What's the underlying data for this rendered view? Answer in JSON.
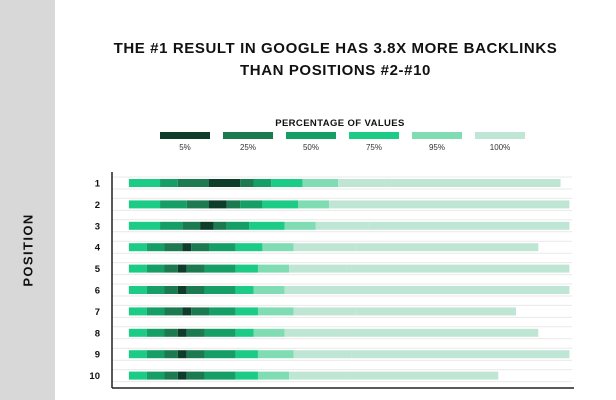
{
  "sidebar": {
    "label": "POSITION"
  },
  "chart_data": {
    "type": "bar",
    "title_lines": [
      "THE #1 RESULT IN GOOGLE HAS 3.8X MORE BACKLINKS",
      "THAN POSITIONS #2-#10"
    ],
    "ylabel": "POSITION",
    "legend_title": "PERCENTAGE OF VALUES",
    "legend": [
      {
        "label": "5%",
        "color": "#0f3d2b"
      },
      {
        "label": "25%",
        "color": "#1b7a4f"
      },
      {
        "label": "50%",
        "color": "#159e66"
      },
      {
        "label": "75%",
        "color": "#1ccb85"
      },
      {
        "label": "95%",
        "color": "#7fdcb3"
      },
      {
        "label": "100%",
        "color": "#bfe6d4"
      }
    ],
    "categories": [
      "1",
      "2",
      "3",
      "4",
      "5",
      "6",
      "7",
      "8",
      "9",
      "10"
    ],
    "x_scale": "log",
    "grid": true,
    "rows": [
      {
        "position": "1",
        "segments": [
          [
            0.02,
            0.09
          ],
          [
            0.09,
            0.13
          ],
          [
            0.13,
            0.2
          ],
          [
            0.2,
            0.27
          ],
          [
            0.27,
            0.3
          ],
          [
            0.3,
            0.34
          ],
          [
            0.34,
            0.41
          ],
          [
            0.41,
            0.49
          ],
          [
            0.49,
            0.61
          ],
          [
            0.61,
            0.99
          ]
        ]
      },
      {
        "position": "2",
        "segments": [
          [
            0.02,
            0.09
          ],
          [
            0.09,
            0.15
          ],
          [
            0.15,
            0.2
          ],
          [
            0.2,
            0.24
          ],
          [
            0.24,
            0.27
          ],
          [
            0.27,
            0.32
          ],
          [
            0.32,
            0.4
          ],
          [
            0.4,
            0.47
          ],
          [
            0.47,
            0.6
          ],
          [
            0.6,
            1.01
          ]
        ]
      },
      {
        "position": "3",
        "segments": [
          [
            0.02,
            0.09
          ],
          [
            0.09,
            0.14
          ],
          [
            0.14,
            0.18
          ],
          [
            0.18,
            0.21
          ],
          [
            0.21,
            0.24
          ],
          [
            0.24,
            0.29
          ],
          [
            0.29,
            0.37
          ],
          [
            0.37,
            0.44
          ],
          [
            0.44,
            0.56
          ],
          [
            0.56,
            1.01
          ]
        ]
      },
      {
        "position": "4",
        "segments": [
          [
            0.02,
            0.06
          ],
          [
            0.06,
            0.1
          ],
          [
            0.1,
            0.14
          ],
          [
            0.14,
            0.16
          ],
          [
            0.16,
            0.2
          ],
          [
            0.2,
            0.26
          ],
          [
            0.26,
            0.32
          ],
          [
            0.32,
            0.39
          ],
          [
            0.39,
            0.53
          ],
          [
            0.53,
            0.94
          ]
        ]
      },
      {
        "position": "5",
        "segments": [
          [
            0.02,
            0.06
          ],
          [
            0.06,
            0.1
          ],
          [
            0.1,
            0.13
          ],
          [
            0.13,
            0.15
          ],
          [
            0.15,
            0.19
          ],
          [
            0.19,
            0.26
          ],
          [
            0.26,
            0.31
          ],
          [
            0.31,
            0.38
          ],
          [
            0.38,
            0.51
          ],
          [
            0.51,
            1.01
          ]
        ]
      },
      {
        "position": "6",
        "segments": [
          [
            0.02,
            0.06
          ],
          [
            0.06,
            0.1
          ],
          [
            0.1,
            0.13
          ],
          [
            0.13,
            0.15
          ],
          [
            0.15,
            0.19
          ],
          [
            0.19,
            0.26
          ],
          [
            0.26,
            0.3
          ],
          [
            0.3,
            0.37
          ],
          [
            0.37,
            0.5
          ],
          [
            0.5,
            1.01
          ]
        ]
      },
      {
        "position": "7",
        "segments": [
          [
            0.02,
            0.06
          ],
          [
            0.06,
            0.1
          ],
          [
            0.1,
            0.14
          ],
          [
            0.14,
            0.16
          ],
          [
            0.16,
            0.2
          ],
          [
            0.2,
            0.26
          ],
          [
            0.26,
            0.31
          ],
          [
            0.31,
            0.39
          ],
          [
            0.39,
            0.53
          ],
          [
            0.53,
            0.89
          ]
        ]
      },
      {
        "position": "8",
        "segments": [
          [
            0.02,
            0.06
          ],
          [
            0.06,
            0.1
          ],
          [
            0.1,
            0.13
          ],
          [
            0.13,
            0.15
          ],
          [
            0.15,
            0.19
          ],
          [
            0.19,
            0.26
          ],
          [
            0.26,
            0.3
          ],
          [
            0.3,
            0.37
          ],
          [
            0.37,
            0.49
          ],
          [
            0.49,
            0.94
          ]
        ]
      },
      {
        "position": "9",
        "segments": [
          [
            0.02,
            0.06
          ],
          [
            0.06,
            0.1
          ],
          [
            0.1,
            0.13
          ],
          [
            0.13,
            0.15
          ],
          [
            0.15,
            0.19
          ],
          [
            0.19,
            0.26
          ],
          [
            0.26,
            0.31
          ],
          [
            0.31,
            0.39
          ],
          [
            0.39,
            0.52
          ],
          [
            0.52,
            1.01
          ]
        ]
      },
      {
        "position": "10",
        "segments": [
          [
            0.02,
            0.06
          ],
          [
            0.06,
            0.1
          ],
          [
            0.1,
            0.13
          ],
          [
            0.13,
            0.15
          ],
          [
            0.15,
            0.19
          ],
          [
            0.19,
            0.26
          ],
          [
            0.26,
            0.31
          ],
          [
            0.31,
            0.38
          ],
          [
            0.38,
            0.51
          ],
          [
            0.51,
            0.85
          ]
        ]
      }
    ]
  }
}
